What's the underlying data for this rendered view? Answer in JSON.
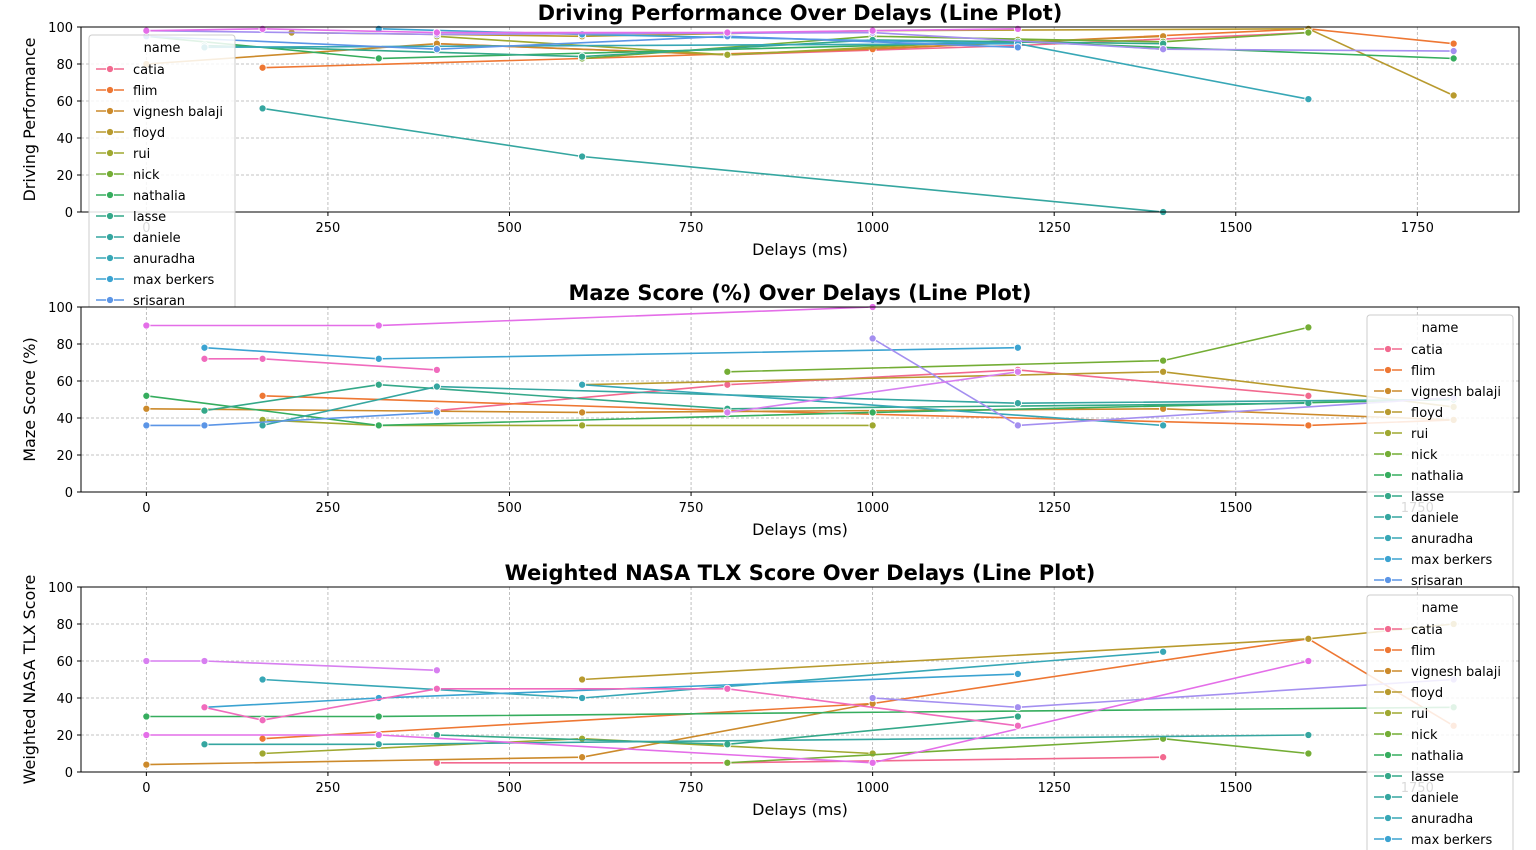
{
  "legend_title": "name",
  "colors": {
    "catia": "#f2698f",
    "flim": "#ee7733",
    "vignesh balaji": "#cc8a2b",
    "floyd": "#b89a2e",
    "rui": "#9fa830",
    "nick": "#74ad35",
    "nathalia": "#36ad5e",
    "lasse": "#34a889",
    "daniele": "#35a6a0",
    "anuradha": "#37a7b6",
    "max berkers": "#3ba3d1",
    "srisaran": "#5b95e6",
    "p13": "#a48ff0",
    "p14": "#e46ee8"
  },
  "chart_data": [
    {
      "type": "line",
      "title": "Driving Performance Over Delays (Line Plot)",
      "xlabel": "Delays (ms)",
      "ylabel": "Driving Performance",
      "xlim": [
        -90,
        1890
      ],
      "ylim": [
        0,
        100
      ],
      "xticks": [
        0,
        250,
        500,
        750,
        1000,
        1250,
        1500,
        1750
      ],
      "yticks": [
        0,
        20,
        40,
        60,
        80,
        100
      ],
      "grid": true,
      "legend": {
        "position": "upper-left",
        "entries": [
          "catia",
          "flim",
          "vignesh balaji",
          "floyd",
          "rui",
          "nick",
          "nathalia",
          "lasse",
          "daniele",
          "anuradha",
          "max berkers",
          "srisaran"
        ]
      },
      "series": [
        {
          "name": "catia",
          "x": [
            400,
            800,
            1200,
            1600
          ],
          "y": [
            91,
            85,
            90,
            97
          ]
        },
        {
          "name": "flim",
          "x": [
            160,
            600,
            1000,
            1600,
            1800
          ],
          "y": [
            78,
            83,
            88,
            99,
            91
          ]
        },
        {
          "name": "vignesh balaji",
          "x": [
            0,
            400,
            800,
            1400
          ],
          "y": [
            80,
            91,
            85,
            95
          ]
        },
        {
          "name": "floyd",
          "x": [
            200,
            600,
            1000,
            1600,
            1800
          ],
          "y": [
            97,
            95,
            98,
            99,
            63
          ]
        },
        {
          "name": "rui",
          "x": [
            400,
            800,
            1200,
            1400
          ],
          "y": [
            95,
            85,
            93,
            88
          ]
        },
        {
          "name": "nick",
          "x": [
            600,
            1000,
            1400,
            1600
          ],
          "y": [
            83,
            95,
            92,
            97
          ]
        },
        {
          "name": "nathalia",
          "x": [
            0,
            320,
            1200,
            1800
          ],
          "y": [
            95,
            83,
            92,
            83
          ]
        },
        {
          "name": "lasse",
          "x": [
            80,
            600,
            1000,
            1400
          ],
          "y": [
            90,
            84,
            93,
            91
          ]
        },
        {
          "name": "daniele",
          "x": [
            160,
            600,
            1400
          ],
          "y": [
            56,
            30,
            0
          ]
        },
        {
          "name": "anuradha",
          "x": [
            80,
            1200,
            1600
          ],
          "y": [
            89,
            91,
            61
          ]
        },
        {
          "name": "max berkers",
          "x": [
            320,
            600,
            1200
          ],
          "y": [
            99,
            96,
            91
          ]
        },
        {
          "name": "srisaran",
          "x": [
            0,
            400,
            800,
            1200
          ],
          "y": [
            95,
            88,
            95,
            89
          ]
        },
        {
          "name": "",
          "x": [
            0,
            400,
            1000,
            1400,
            1800
          ],
          "y": [
            98,
            96,
            97,
            88,
            87
          ]
        },
        {
          "name": "",
          "x": [
            0,
            160,
            400,
            800,
            1000,
            1200
          ],
          "y": [
            98,
            99,
            97,
            97,
            98,
            99
          ]
        }
      ]
    },
    {
      "type": "line",
      "title": "Maze Score (%) Over Delays (Line Plot)",
      "xlabel": "Delays (ms)",
      "ylabel": "Maze Score (%)",
      "xlim": [
        -90,
        1890
      ],
      "ylim": [
        0,
        100
      ],
      "xticks": [
        0,
        250,
        500,
        750,
        1000,
        1250,
        1500,
        1750
      ],
      "yticks": [
        0,
        20,
        40,
        60,
        80,
        100
      ],
      "grid": true,
      "legend": {
        "position": "upper-right",
        "entries": [
          "catia",
          "flim",
          "vignesh balaji",
          "floyd",
          "rui",
          "nick",
          "nathalia",
          "lasse",
          "daniele",
          "anuradha",
          "max berkers",
          "srisaran"
        ]
      },
      "series": [
        {
          "name": "catia",
          "x": [
            400,
            800,
            1200,
            1600
          ],
          "y": [
            44,
            58,
            66,
            52
          ]
        },
        {
          "name": "flim",
          "x": [
            160,
            800,
            1600,
            1800
          ],
          "y": [
            52,
            44,
            36,
            39
          ]
        },
        {
          "name": "vignesh balaji",
          "x": [
            0,
            600,
            1400,
            1800
          ],
          "y": [
            45,
            43,
            45,
            39
          ]
        },
        {
          "name": "floyd",
          "x": [
            600,
            1400,
            1800
          ],
          "y": [
            58,
            65,
            46
          ]
        },
        {
          "name": "rui",
          "x": [
            160,
            320,
            600,
            1000
          ],
          "y": [
            39,
            36,
            36,
            36
          ]
        },
        {
          "name": "nick",
          "x": [
            800,
            1400,
            1600
          ],
          "y": [
            65,
            71,
            89
          ]
        },
        {
          "name": "nathalia",
          "x": [
            0,
            320,
            1000,
            1800
          ],
          "y": [
            52,
            36,
            43,
            50
          ]
        },
        {
          "name": "lasse",
          "x": [
            80,
            320,
            800,
            1600
          ],
          "y": [
            44,
            58,
            45,
            48
          ]
        },
        {
          "name": "daniele",
          "x": [
            160,
            400,
            1200,
            1800
          ],
          "y": [
            36,
            57,
            48,
            50
          ]
        },
        {
          "name": "anuradha",
          "x": [
            600,
            1400
          ],
          "y": [
            58,
            36
          ]
        },
        {
          "name": "max berkers",
          "x": [
            80,
            320,
            1200
          ],
          "y": [
            78,
            72,
            78
          ]
        },
        {
          "name": "srisaran",
          "x": [
            0,
            80,
            400
          ],
          "y": [
            36,
            36,
            43
          ]
        },
        {
          "name": "",
          "x": [
            1000,
            1200,
            1800
          ],
          "y": [
            83,
            36,
            51
          ]
        },
        {
          "name": "",
          "x": [
            0,
            320,
            1000
          ],
          "y": [
            90,
            90,
            100
          ]
        },
        {
          "name": "",
          "x": [
            80,
            160,
            400
          ],
          "y": [
            72,
            72,
            66
          ]
        },
        {
          "name": "",
          "x": [
            800,
            1200
          ],
          "y": [
            43,
            65
          ]
        }
      ]
    },
    {
      "type": "line",
      "title": "Weighted NASA TLX Score Over Delays (Line Plot)",
      "xlabel": "Delays (ms)",
      "ylabel": "Weighted NASA TLX Score",
      "xlim": [
        -90,
        1890
      ],
      "ylim": [
        0,
        100
      ],
      "xticks": [
        0,
        250,
        500,
        750,
        1000,
        1250,
        1500,
        1750
      ],
      "yticks": [
        0,
        20,
        40,
        60,
        80,
        100
      ],
      "grid": true,
      "legend": {
        "position": "upper-right",
        "entries": [
          "catia",
          "flim",
          "vignesh balaji",
          "floyd",
          "rui",
          "nick",
          "nathalia",
          "lasse",
          "daniele",
          "anuradha",
          "max berkers"
        ]
      },
      "series": [
        {
          "name": "catia",
          "x": [
            400,
            800,
            1400
          ],
          "y": [
            5,
            5,
            8
          ]
        },
        {
          "name": "flim",
          "x": [
            160,
            1000,
            1600,
            1800
          ],
          "y": [
            18,
            37,
            72,
            25
          ]
        },
        {
          "name": "vignesh balaji",
          "x": [
            0,
            600,
            1000
          ],
          "y": [
            4,
            8,
            37
          ]
        },
        {
          "name": "floyd",
          "x": [
            600,
            1600,
            1800
          ],
          "y": [
            50,
            72,
            80
          ]
        },
        {
          "name": "rui",
          "x": [
            160,
            600,
            1000
          ],
          "y": [
            10,
            18,
            10
          ]
        },
        {
          "name": "nick",
          "x": [
            800,
            1400,
            1600
          ],
          "y": [
            5,
            18,
            10
          ]
        },
        {
          "name": "nathalia",
          "x": [
            0,
            320,
            1800
          ],
          "y": [
            30,
            30,
            35
          ]
        },
        {
          "name": "lasse",
          "x": [
            400,
            800,
            1200
          ],
          "y": [
            20,
            15,
            30
          ]
        },
        {
          "name": "daniele",
          "x": [
            80,
            320,
            1600
          ],
          "y": [
            15,
            15,
            20
          ]
        },
        {
          "name": "anuradha",
          "x": [
            160,
            600,
            1400
          ],
          "y": [
            50,
            40,
            65
          ]
        },
        {
          "name": "max berkers",
          "x": [
            80,
            320,
            1200
          ],
          "y": [
            35,
            40,
            53
          ]
        },
        {
          "name": "",
          "x": [
            0,
            80,
            400
          ],
          "y": [
            60,
            60,
            55
          ]
        },
        {
          "name": "",
          "x": [
            1000,
            1200,
            1800
          ],
          "y": [
            40,
            35,
            50
          ]
        },
        {
          "name": "",
          "x": [
            0,
            320,
            1000,
            1600
          ],
          "y": [
            20,
            20,
            5,
            60
          ]
        },
        {
          "name": "",
          "x": [
            80,
            160,
            400,
            800,
            1200
          ],
          "y": [
            35,
            28,
            45,
            45,
            25
          ]
        }
      ]
    }
  ]
}
